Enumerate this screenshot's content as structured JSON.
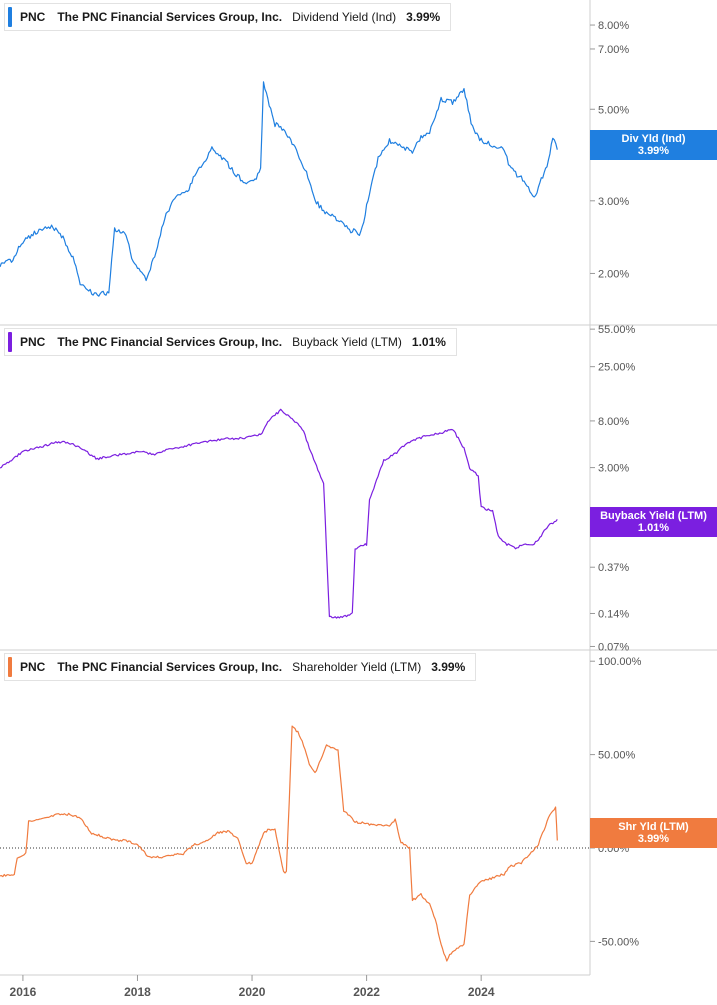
{
  "colors": {
    "dividend": "#1f7fe0",
    "buyback": "#7b1fe0",
    "shareholder": "#f07b3f"
  },
  "chart_data": [
    {
      "type": "line",
      "legend": {
        "ticker": "PNC",
        "company": "The PNC Financial Services Group, Inc.",
        "metric": "Dividend Yield (Ind)",
        "value": "3.99%"
      },
      "tag": {
        "label": "Div Yld (Ind)",
        "value": "3.99%"
      },
      "scale": "log",
      "ylim": [
        1.5,
        9.2
      ],
      "yticks": [
        {
          "v": 8,
          "label": "8.00%"
        },
        {
          "v": 7,
          "label": "7.00%"
        },
        {
          "v": 5,
          "label": "5.00%"
        },
        {
          "v": 3,
          "label": "3.00%"
        },
        {
          "v": 2,
          "label": "2.00%"
        }
      ],
      "series": [
        {
          "x": [
            2015.6,
            2015.8,
            2016.0,
            2016.2,
            2016.5,
            2016.7,
            2016.9,
            2017.0,
            2017.2,
            2017.3,
            2017.5,
            2017.6,
            2017.8,
            2017.9,
            2018.0,
            2018.15,
            2018.3,
            2018.5,
            2018.7,
            2018.9,
            2019.0,
            2019.3,
            2019.5,
            2019.7,
            2019.9,
            2020.05,
            2020.15,
            2020.2,
            2020.4,
            2020.6,
            2020.8,
            2020.95,
            2021.1,
            2021.3,
            2021.5,
            2021.7,
            2021.9,
            2022.0,
            2022.2,
            2022.4,
            2022.6,
            2022.8,
            2022.95,
            2023.1,
            2023.3,
            2023.5,
            2023.7,
            2023.85,
            2024.0,
            2024.2,
            2024.4,
            2024.5,
            2024.7,
            2024.85,
            2024.95,
            2025.05,
            2025.15,
            2025.25,
            2025.33
          ],
          "y": [
            2.1,
            2.15,
            2.4,
            2.5,
            2.6,
            2.45,
            2.15,
            1.9,
            1.8,
            1.78,
            1.8,
            2.55,
            2.5,
            2.2,
            2.05,
            1.95,
            2.2,
            2.8,
            3.1,
            3.2,
            3.45,
            4.0,
            3.8,
            3.5,
            3.3,
            3.35,
            3.6,
            5.8,
            4.6,
            4.4,
            3.9,
            3.5,
            3.0,
            2.8,
            2.7,
            2.55,
            2.5,
            2.9,
            3.8,
            4.2,
            4.1,
            3.9,
            4.3,
            4.4,
            5.3,
            5.2,
            5.6,
            4.5,
            4.2,
            4.1,
            4.0,
            3.6,
            3.4,
            3.2,
            3.05,
            3.4,
            3.6,
            4.3,
            3.99
          ]
        }
      ]
    },
    {
      "type": "line",
      "legend": {
        "ticker": "PNC",
        "company": "The PNC Financial Services Group, Inc.",
        "metric": "Buyback Yield (LTM)",
        "value": "1.01%"
      },
      "tag": {
        "label": "Buyback Yield (LTM)",
        "value": "1.01%"
      },
      "scale": "log",
      "ylim": [
        0.065,
        60
      ],
      "yticks": [
        {
          "v": 55,
          "label": "55.00%"
        },
        {
          "v": 25,
          "label": "25.00%"
        },
        {
          "v": 8,
          "label": "8.00%"
        },
        {
          "v": 3,
          "label": "3.00%"
        },
        {
          "v": 0.37,
          "label": "0.37%"
        },
        {
          "v": 0.14,
          "label": "0.14%"
        },
        {
          "v": 0.07,
          "label": "0.07%"
        }
      ],
      "series": [
        {
          "x": [
            2015.6,
            2015.8,
            2016.0,
            2016.3,
            2016.5,
            2016.7,
            2016.9,
            2017.1,
            2017.3,
            2017.5,
            2017.8,
            2018.0,
            2018.3,
            2018.5,
            2018.8,
            2019.0,
            2019.3,
            2019.6,
            2019.9,
            2020.15,
            2020.3,
            2020.5,
            2020.7,
            2020.9,
            2021.0,
            2021.2,
            2021.25,
            2021.35,
            2021.6,
            2021.75,
            2021.8,
            2022.0,
            2022.05,
            2022.1,
            2022.3,
            2022.5,
            2022.7,
            2022.9,
            2023.1,
            2023.3,
            2023.5,
            2023.7,
            2023.8,
            2023.95,
            2024.0,
            2024.2,
            2024.3,
            2024.45,
            2024.6,
            2024.75,
            2024.9,
            2025.0,
            2025.1,
            2025.2,
            2025.33
          ],
          "y": [
            3.0,
            3.5,
            4.2,
            4.6,
            5.0,
            5.2,
            4.8,
            4.2,
            3.6,
            3.8,
            4.0,
            4.2,
            4.0,
            4.4,
            4.6,
            5.0,
            5.3,
            5.5,
            5.6,
            6.0,
            8.2,
            10.0,
            8.5,
            6.5,
            4.5,
            2.5,
            2.2,
            0.13,
            0.13,
            0.14,
            0.55,
            0.6,
            1.5,
            1.8,
            3.5,
            4.0,
            5.0,
            5.5,
            6.0,
            6.2,
            6.8,
            4.5,
            3.0,
            2.5,
            1.3,
            1.2,
            0.7,
            0.6,
            0.55,
            0.6,
            0.6,
            0.65,
            0.8,
            0.9,
            1.01
          ]
        }
      ]
    },
    {
      "type": "line",
      "legend": {
        "ticker": "PNC",
        "company": "The PNC Financial Services Group, Inc.",
        "metric": "Shareholder Yield (LTM)",
        "value": "3.99%"
      },
      "tag": {
        "label": "Shr Yld (LTM)",
        "value": "3.99%"
      },
      "scale": "linear",
      "ylim": [
        -68,
        106
      ],
      "zero_line": true,
      "yticks": [
        {
          "v": 100,
          "label": "100.00%"
        },
        {
          "v": 50,
          "label": "50.00%"
        },
        {
          "v": 0,
          "label": "0.00%"
        },
        {
          "v": -50,
          "label": "-50.00%"
        }
      ],
      "series": [
        {
          "x": [
            2015.6,
            2015.85,
            2015.9,
            2016.05,
            2016.1,
            2016.4,
            2016.6,
            2016.8,
            2017.0,
            2017.2,
            2017.4,
            2017.6,
            2017.8,
            2018.0,
            2018.2,
            2018.4,
            2018.6,
            2018.8,
            2019.0,
            2019.1,
            2019.3,
            2019.4,
            2019.6,
            2019.75,
            2019.9,
            2020.0,
            2020.2,
            2020.3,
            2020.4,
            2020.55,
            2020.6,
            2020.7,
            2020.8,
            2020.9,
            2021.0,
            2021.1,
            2021.3,
            2021.5,
            2021.6,
            2021.8,
            2022.0,
            2022.2,
            2022.4,
            2022.5,
            2022.6,
            2022.75,
            2022.8,
            2022.95,
            2023.1,
            2023.2,
            2023.3,
            2023.4,
            2023.5,
            2023.7,
            2023.8,
            2024.0,
            2024.2,
            2024.4,
            2024.5,
            2024.7,
            2024.85,
            2025.0,
            2025.2,
            2025.3,
            2025.33
          ],
          "y": [
            -15,
            -14,
            -5,
            -3,
            14,
            16,
            18,
            18,
            16,
            8,
            6,
            4,
            4,
            2,
            -5,
            -5,
            -4,
            -3,
            2,
            2,
            6,
            8,
            9,
            5,
            -8,
            -8,
            8,
            10,
            10,
            -13,
            -13,
            65,
            62,
            55,
            45,
            40,
            55,
            52,
            20,
            14,
            13,
            12,
            12,
            15,
            3,
            0,
            -28,
            -25,
            -30,
            -38,
            -52,
            -60,
            -55,
            -52,
            -25,
            -18,
            -16,
            -14,
            -10,
            -8,
            -3,
            2,
            18,
            22,
            4
          ]
        }
      ]
    }
  ],
  "x_axis": {
    "labels": [
      "2016",
      "2018",
      "2020",
      "2022",
      "2024"
    ],
    "values": [
      2016,
      2018,
      2020,
      2022,
      2024
    ],
    "range": [
      2015.6,
      2025.9
    ]
  }
}
